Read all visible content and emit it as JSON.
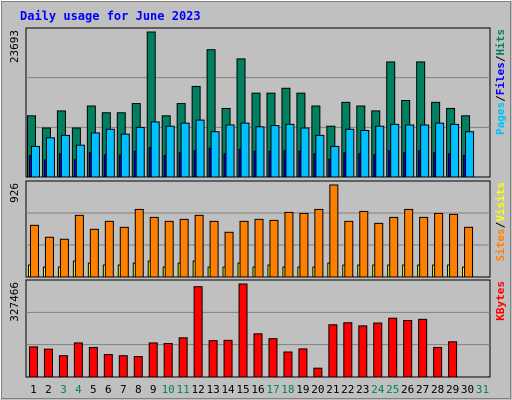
{
  "chart_data": {
    "type": "bar",
    "title": "Daily usage for June 2023",
    "days": [
      "1",
      "2",
      "3",
      "4",
      "5",
      "6",
      "7",
      "8",
      "9",
      "10",
      "11",
      "12",
      "13",
      "14",
      "15",
      "16",
      "17",
      "18",
      "19",
      "20",
      "21",
      "22",
      "23",
      "24",
      "25",
      "26",
      "27",
      "28",
      "29",
      "30",
      "31"
    ],
    "weekend_days": [
      "3",
      "4",
      "10",
      "11",
      "17",
      "18",
      "24",
      "25",
      "31"
    ],
    "panels": [
      {
        "id": "hits-panel",
        "ymax_label": "23693",
        "ymax": 23693,
        "legend": [
          {
            "text": "Pages",
            "color": "#00c0ff"
          },
          {
            "text": "/",
            "color": "#000000"
          },
          {
            "text": "Files",
            "color": "#0000ff"
          },
          {
            "text": "/",
            "color": "#000000"
          },
          {
            "text": "Hits",
            "color": "#008060"
          }
        ],
        "series": [
          {
            "name": "Hits",
            "color": "#008060",
            "values": [
              10000,
              8000,
              10800,
              8000,
              11600,
              10500,
              10500,
              12000,
              23693,
              10000,
              12000,
              14800,
              20800,
              11200,
              19300,
              13700,
              13700,
              14500,
              13700,
              11600,
              8300,
              12200,
              11600,
              10800,
              18800,
              12500,
              18800,
              12200,
              11200,
              10000,
              0
            ]
          },
          {
            "name": "Files",
            "color": "#0000ff",
            "values": [
              3500,
              2800,
              3800,
              2800,
              4000,
              3600,
              3600,
              4200,
              4800,
              3500,
              4000,
              4300,
              4700,
              3800,
              4500,
              4200,
              4200,
              4300,
              4200,
              3800,
              2900,
              4000,
              3800,
              3600,
              4300,
              4000,
              4300,
              4000,
              3800,
              3500,
              0
            ]
          },
          {
            "name": "Pages",
            "color": "#00c0ff",
            "values": [
              5000,
              6400,
              6800,
              5200,
              7200,
              7800,
              7000,
              8100,
              9000,
              8300,
              8800,
              9300,
              7400,
              8500,
              8800,
              8200,
              8400,
              8600,
              8000,
              6800,
              5000,
              7800,
              7600,
              8300,
              8600,
              8500,
              8500,
              8800,
              8600,
              7400,
              0
            ]
          }
        ]
      },
      {
        "id": "visits-panel",
        "ymax_label": "926",
        "ymax": 926,
        "legend": [
          {
            "text": "Sites",
            "color": "#ff8000"
          },
          {
            "text": "/",
            "color": "#000000"
          },
          {
            "text": "Visits",
            "color": "#ffff00"
          }
        ],
        "series": [
          {
            "name": "Visits",
            "color": "#ffff00",
            "values": [
              120,
              100,
              100,
              160,
              140,
              120,
              120,
              140,
              160,
              100,
              140,
              160,
              100,
              100,
              140,
              100,
              120,
              100,
              100,
              100,
              140,
              120,
              120,
              120,
              120,
              120,
              120,
              120,
              120,
              100,
              0
            ]
          },
          {
            "name": "Sites",
            "color": "#ff8000",
            "values": [
              520,
              400,
              380,
              620,
              480,
              560,
              500,
              680,
              600,
              560,
              580,
              620,
              560,
              450,
              560,
              580,
              570,
              650,
              640,
              680,
              926,
              560,
              660,
              540,
              600,
              680,
              600,
              640,
              630,
              500,
              0
            ]
          }
        ]
      },
      {
        "id": "kbytes-panel",
        "ymax_label": "327466",
        "ymax": 327466,
        "legend": [
          {
            "text": "KBytes",
            "color": "#ff0000"
          }
        ],
        "series": [
          {
            "name": "KBytes",
            "color": "#ff0000",
            "values": [
              106000,
              98000,
              75000,
              120000,
              104000,
              79000,
              75000,
              72000,
              120000,
              118000,
              138000,
              318000,
              128000,
              129000,
              327466,
              152000,
              135000,
              88000,
              99000,
              31000,
              184000,
              191000,
              180000,
              190000,
              207000,
              199000,
              203000,
              104000,
              124000,
              0,
              0
            ]
          }
        ]
      }
    ]
  }
}
